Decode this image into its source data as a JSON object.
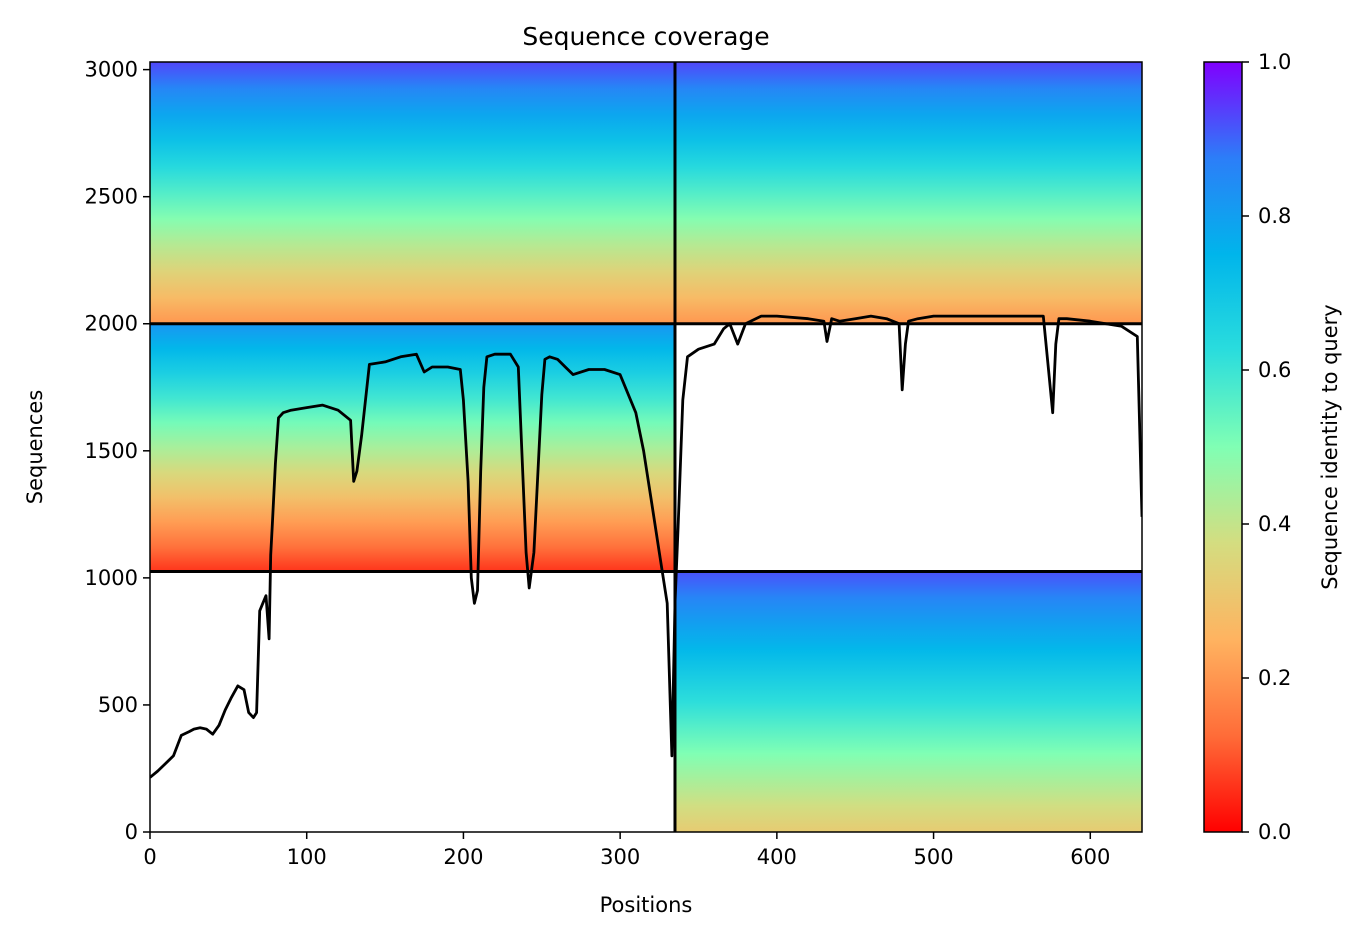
{
  "chart_data": {
    "type": "heatmap",
    "title": "Sequence coverage",
    "xlabel": "Positions",
    "ylabel": "Sequences",
    "xlim": [
      0,
      633
    ],
    "ylim": [
      0,
      3030
    ],
    "xticks": [
      0,
      100,
      200,
      300,
      400,
      500,
      600
    ],
    "yticks": [
      0,
      500,
      1000,
      1500,
      2000,
      2500,
      3000
    ],
    "colorbar": {
      "label": "Sequence identity to query",
      "range": [
        0.0,
        1.0
      ],
      "ticks": [
        "0.0",
        "0.2",
        "0.4",
        "0.6",
        "0.8",
        "1.0"
      ],
      "colormap": "rainbow"
    },
    "blocks": [
      {
        "x0": 335,
        "x1": 633,
        "y0": 0,
        "y1": 1025,
        "identity_bottom": 0.32,
        "identity_top": 0.92
      },
      {
        "x0": 0,
        "x1": 335,
        "y0": 1025,
        "y1": 2000,
        "identity_bottom": 0.06,
        "identity_top": 0.82
      },
      {
        "x0": 0,
        "x1": 633,
        "y0": 2000,
        "y1": 3030,
        "identity_bottom": 0.2,
        "identity_top": 0.93
      }
    ],
    "separators": {
      "vertical_x": [
        335
      ],
      "horizontal_y": [
        1025,
        2000
      ]
    },
    "coverage_line": {
      "name": "coverage",
      "x": [
        0,
        5,
        10,
        15,
        20,
        25,
        28,
        32,
        36,
        40,
        44,
        48,
        52,
        56,
        60,
        63,
        66,
        68,
        70,
        72,
        74,
        76,
        77,
        78,
        80,
        82,
        85,
        90,
        100,
        110,
        120,
        128,
        130,
        132,
        135,
        140,
        150,
        160,
        170,
        175,
        180,
        190,
        198,
        200,
        203,
        205,
        207,
        209,
        211,
        213,
        215,
        220,
        230,
        235,
        240,
        242,
        245,
        250,
        252,
        255,
        260,
        265,
        270,
        280,
        290,
        300,
        310,
        315,
        320,
        325,
        330,
        332,
        333,
        335,
        337,
        340,
        343,
        350,
        360,
        366,
        370,
        375,
        380,
        390,
        400,
        420,
        430,
        432,
        435,
        440,
        450,
        460,
        470,
        478,
        480,
        482,
        484,
        490,
        500,
        520,
        540,
        570,
        576,
        578,
        580,
        585,
        600,
        620,
        630,
        633
      ],
      "y": [
        215,
        240,
        270,
        300,
        380,
        395,
        405,
        410,
        405,
        385,
        420,
        480,
        530,
        575,
        560,
        470,
        450,
        470,
        870,
        900,
        930,
        760,
        1090,
        1200,
        1450,
        1630,
        1650,
        1660,
        1670,
        1680,
        1660,
        1620,
        1380,
        1420,
        1560,
        1840,
        1850,
        1870,
        1880,
        1810,
        1830,
        1830,
        1820,
        1700,
        1380,
        1000,
        900,
        950,
        1420,
        1750,
        1870,
        1880,
        1880,
        1830,
        1100,
        960,
        1100,
        1720,
        1860,
        1870,
        1860,
        1830,
        1800,
        1820,
        1820,
        1800,
        1650,
        1500,
        1300,
        1100,
        900,
        500,
        300,
        900,
        1200,
        1700,
        1870,
        1900,
        1920,
        1980,
        2000,
        1920,
        2000,
        2030,
        2030,
        2020,
        2010,
        1930,
        2020,
        2010,
        2020,
        2030,
        2020,
        2000,
        1740,
        1920,
        2010,
        2020,
        2030,
        2030,
        2030,
        2030,
        1650,
        1920,
        2020,
        2020,
        2010,
        1990,
        1950,
        1240
      ]
    }
  }
}
